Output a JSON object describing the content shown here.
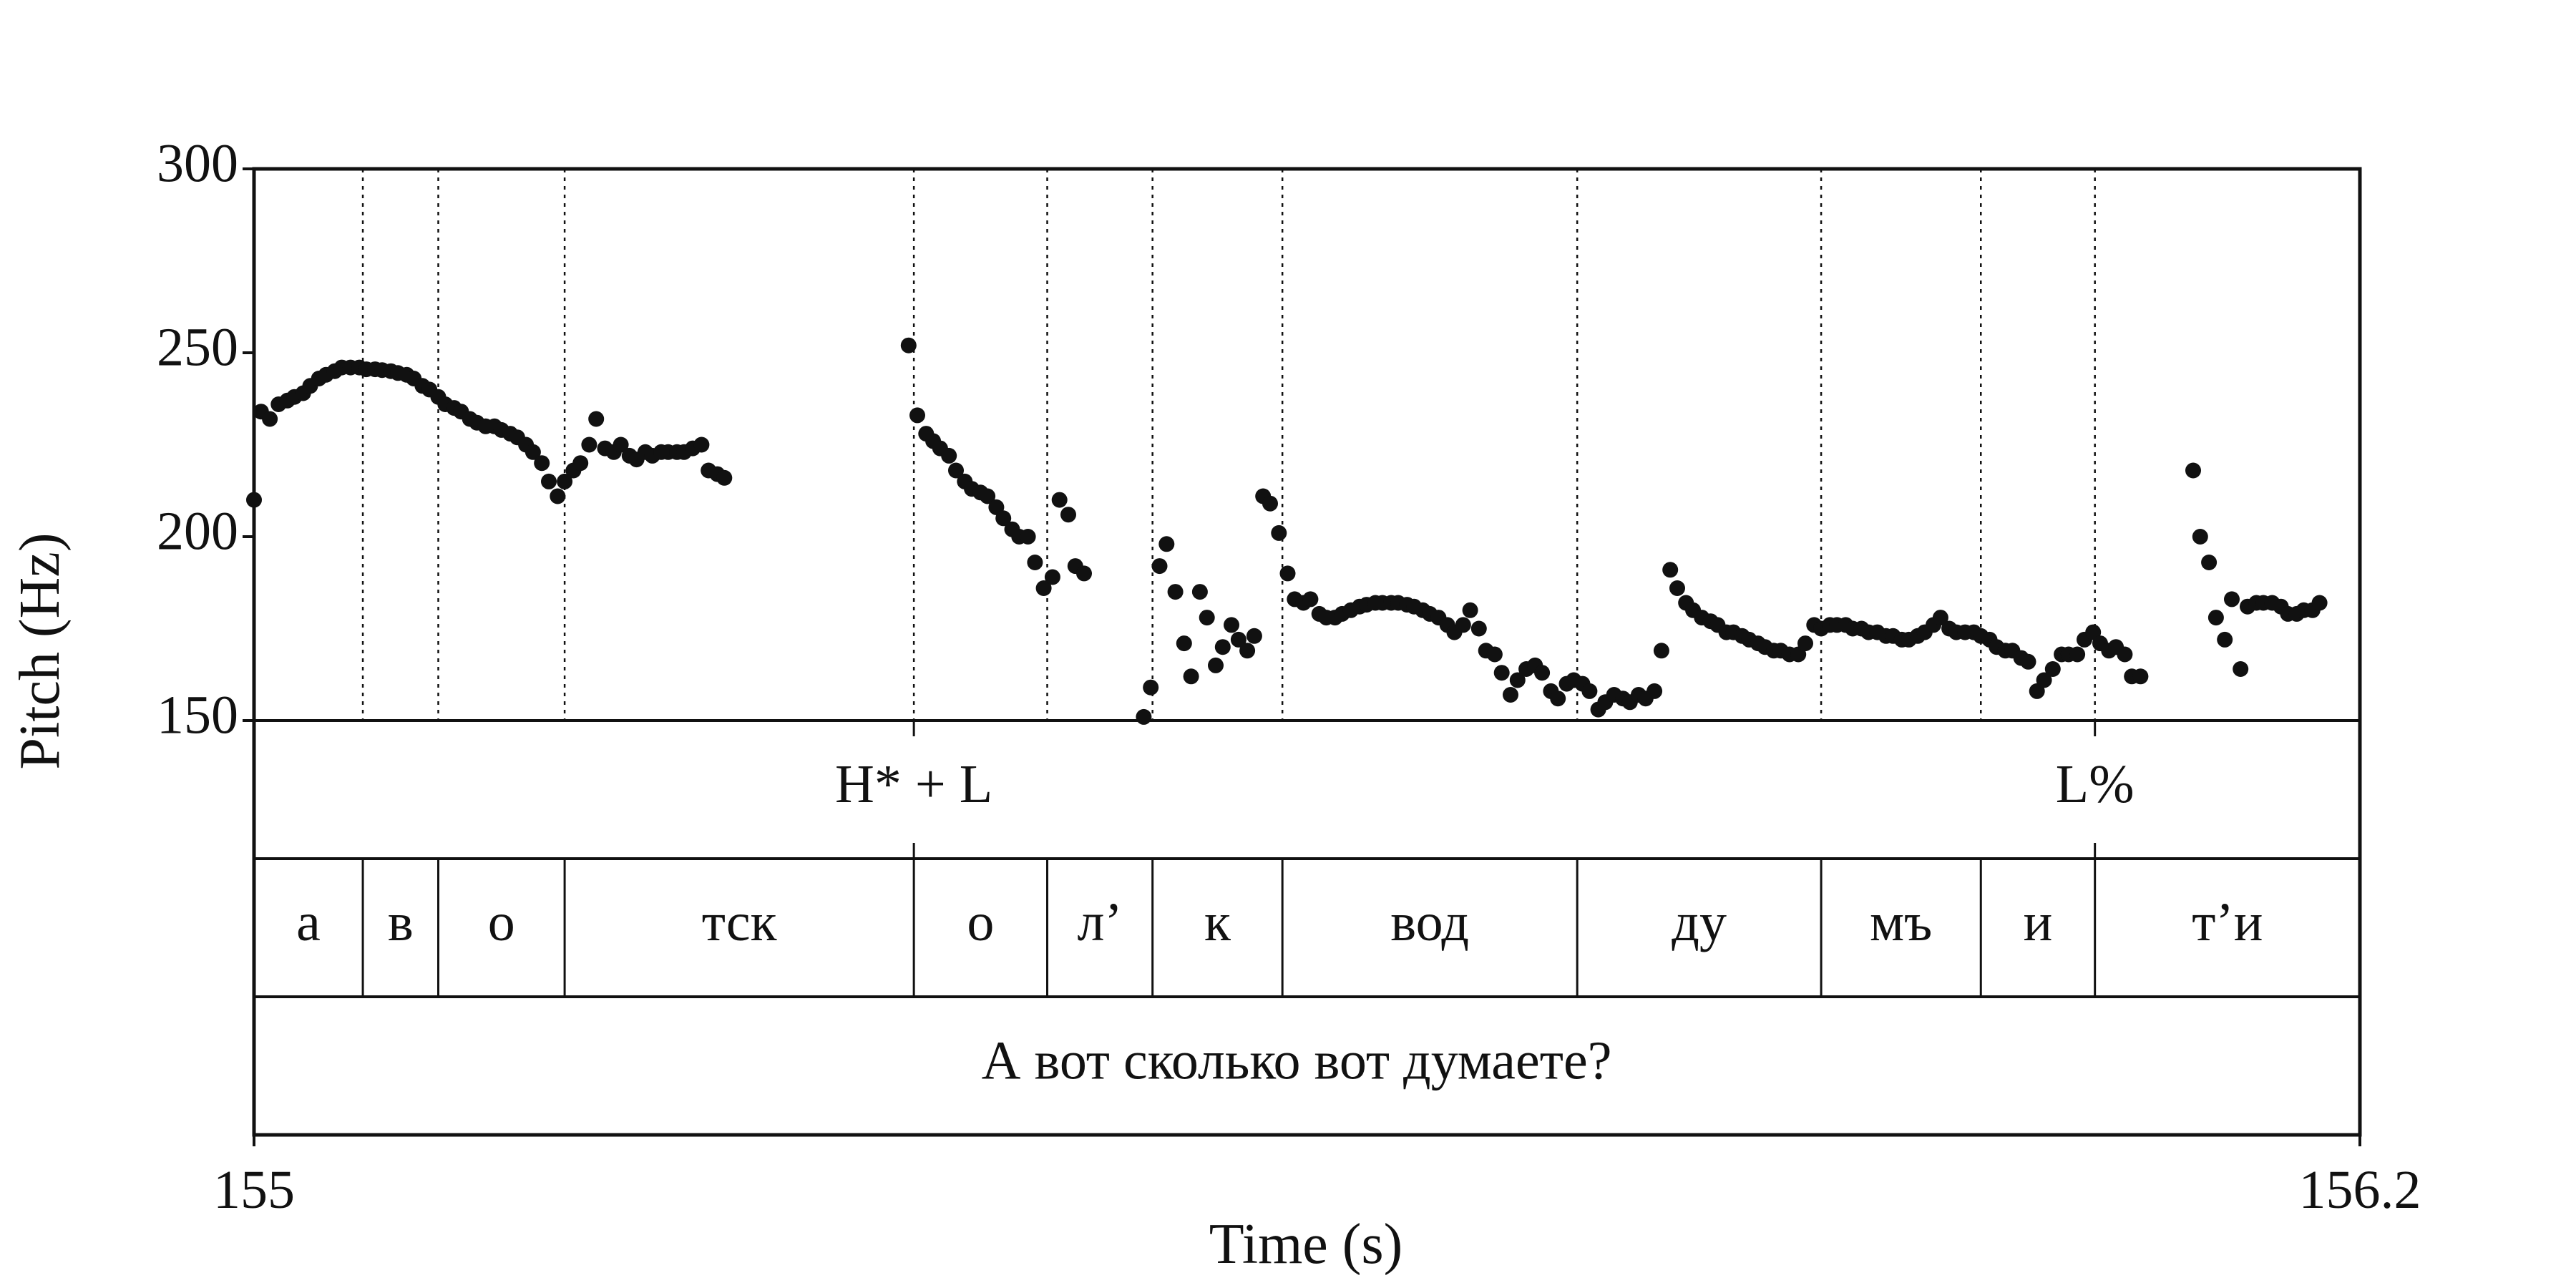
{
  "chart_data": {
    "type": "scatter",
    "xlabel": "Time (s)",
    "ylabel": "Pitch (Hz)",
    "xlim": [
      155,
      156.2
    ],
    "ylim": [
      150,
      300
    ],
    "x_ticks": [
      "155",
      "156.2"
    ],
    "y_ticks": [
      "150",
      "200",
      "250",
      "300"
    ],
    "grid": false,
    "tone_tier": [
      {
        "label": "H* + L",
        "t": 155.376
      },
      {
        "label": "L%",
        "t": 156.049
      }
    ],
    "segment_tier": [
      {
        "label": "а",
        "start": 155.0,
        "end": 155.062
      },
      {
        "label": "в",
        "start": 155.062,
        "end": 155.105
      },
      {
        "label": "о",
        "start": 155.105,
        "end": 155.177
      },
      {
        "label": "тск",
        "start": 155.177,
        "end": 155.376
      },
      {
        "label": "о",
        "start": 155.376,
        "end": 155.452
      },
      {
        "label": "л’",
        "start": 155.452,
        "end": 155.512
      },
      {
        "label": "к",
        "start": 155.512,
        "end": 155.586
      },
      {
        "label": "вод",
        "start": 155.586,
        "end": 155.754
      },
      {
        "label": "ду",
        "start": 155.754,
        "end": 155.893
      },
      {
        "label": "мъ",
        "start": 155.893,
        "end": 155.984
      },
      {
        "label": "и",
        "start": 155.984,
        "end": 156.049
      },
      {
        "label": "т’и",
        "start": 156.049,
        "end": 156.2
      }
    ],
    "sentence_tier": "А вот сколько вот думаете?",
    "series": [
      {
        "values": [
          [
            155.0,
            210
          ],
          [
            155.004,
            234
          ],
          [
            155.009,
            232
          ],
          [
            155.014,
            236
          ],
          [
            155.019,
            237
          ],
          [
            155.023,
            238
          ],
          [
            155.028,
            239
          ],
          [
            155.032,
            241
          ],
          [
            155.037,
            243
          ],
          [
            155.041,
            244
          ],
          [
            155.046,
            245
          ],
          [
            155.05,
            246
          ],
          [
            155.055,
            246
          ],
          [
            155.06,
            246
          ],
          [
            155.064,
            245.5
          ],
          [
            155.069,
            245.5
          ],
          [
            155.073,
            245.3
          ],
          [
            155.078,
            245
          ],
          [
            155.082,
            244.5
          ],
          [
            155.087,
            244
          ],
          [
            155.091,
            243
          ],
          [
            155.096,
            241
          ],
          [
            155.1,
            240
          ],
          [
            155.105,
            238
          ],
          [
            155.109,
            236
          ],
          [
            155.114,
            235
          ],
          [
            155.118,
            234
          ],
          [
            155.123,
            232
          ],
          [
            155.127,
            231
          ],
          [
            155.132,
            230
          ],
          [
            155.137,
            230
          ],
          [
            155.141,
            229
          ],
          [
            155.146,
            228
          ],
          [
            155.15,
            227
          ],
          [
            155.155,
            225
          ],
          [
            155.159,
            223
          ],
          [
            155.164,
            220
          ],
          [
            155.168,
            215
          ],
          [
            155.173,
            211
          ],
          [
            155.177,
            215
          ],
          [
            155.182,
            218
          ],
          [
            155.186,
            220
          ],
          [
            155.191,
            225
          ],
          [
            155.195,
            232
          ],
          [
            155.2,
            224
          ],
          [
            155.205,
            223
          ],
          [
            155.209,
            225
          ],
          [
            155.214,
            222
          ],
          [
            155.218,
            221
          ],
          [
            155.223,
            223
          ],
          [
            155.227,
            222
          ],
          [
            155.232,
            223
          ],
          [
            155.236,
            223
          ],
          [
            155.241,
            223
          ],
          [
            155.245,
            223
          ],
          [
            155.25,
            224
          ],
          [
            155.255,
            225
          ],
          [
            155.259,
            218
          ],
          [
            155.264,
            217
          ],
          [
            155.268,
            216
          ]
        ]
      },
      {
        "values": [
          [
            155.373,
            252
          ],
          [
            155.378,
            233
          ],
          [
            155.383,
            228
          ],
          [
            155.387,
            226
          ],
          [
            155.391,
            224
          ],
          [
            155.396,
            222
          ],
          [
            155.4,
            218
          ],
          [
            155.405,
            215
          ],
          [
            155.409,
            213
          ],
          [
            155.414,
            212
          ],
          [
            155.418,
            211
          ],
          [
            155.423,
            208
          ],
          [
            155.427,
            205
          ],
          [
            155.432,
            202
          ],
          [
            155.436,
            200
          ],
          [
            155.441,
            200
          ],
          [
            155.445,
            193
          ],
          [
            155.45,
            186
          ],
          [
            155.455,
            189
          ],
          [
            155.459,
            210
          ],
          [
            155.464,
            206
          ],
          [
            155.468,
            192
          ],
          [
            155.473,
            190
          ]
        ]
      },
      {
        "values": [
          [
            155.507,
            151
          ],
          [
            155.511,
            159
          ],
          [
            155.516,
            192
          ],
          [
            155.52,
            198
          ],
          [
            155.525,
            185
          ],
          [
            155.53,
            171
          ],
          [
            155.534,
            162
          ],
          [
            155.539,
            185
          ],
          [
            155.543,
            178
          ],
          [
            155.548,
            165
          ],
          [
            155.552,
            170
          ],
          [
            155.557,
            176
          ],
          [
            155.561,
            172
          ],
          [
            155.566,
            169
          ],
          [
            155.57,
            173
          ],
          [
            155.575,
            211
          ],
          [
            155.579,
            209
          ],
          [
            155.584,
            201
          ],
          [
            155.589,
            190
          ],
          [
            155.593,
            183
          ],
          [
            155.598,
            182
          ],
          [
            155.602,
            183
          ],
          [
            155.607,
            179
          ],
          [
            155.611,
            178
          ],
          [
            155.616,
            178
          ],
          [
            155.62,
            179
          ],
          [
            155.625,
            180
          ],
          [
            155.63,
            181
          ],
          [
            155.634,
            181.5
          ],
          [
            155.639,
            182
          ],
          [
            155.643,
            182
          ],
          [
            155.648,
            182
          ],
          [
            155.652,
            182
          ],
          [
            155.657,
            181.5
          ],
          [
            155.661,
            181
          ],
          [
            155.666,
            180
          ],
          [
            155.67,
            179
          ],
          [
            155.675,
            178
          ],
          [
            155.68,
            176
          ],
          [
            155.684,
            174
          ],
          [
            155.689,
            176
          ],
          [
            155.693,
            180
          ],
          [
            155.698,
            175
          ],
          [
            155.702,
            169
          ],
          [
            155.707,
            168
          ],
          [
            155.711,
            163
          ],
          [
            155.716,
            157
          ],
          [
            155.72,
            161
          ],
          [
            155.725,
            164
          ],
          [
            155.73,
            165
          ],
          [
            155.734,
            163
          ],
          [
            155.739,
            158
          ],
          [
            155.743,
            156
          ],
          [
            155.748,
            160
          ],
          [
            155.752,
            161
          ],
          [
            155.757,
            160
          ],
          [
            155.761,
            158
          ],
          [
            155.766,
            153
          ],
          [
            155.77,
            155
          ],
          [
            155.775,
            157
          ],
          [
            155.78,
            156
          ],
          [
            155.784,
            155
          ],
          [
            155.789,
            157
          ],
          [
            155.793,
            156
          ],
          [
            155.798,
            158
          ],
          [
            155.802,
            169
          ]
        ]
      },
      {
        "values": [
          [
            155.807,
            191
          ],
          [
            155.811,
            186
          ],
          [
            155.816,
            182
          ],
          [
            155.82,
            180
          ],
          [
            155.825,
            178
          ],
          [
            155.83,
            177
          ],
          [
            155.834,
            176
          ],
          [
            155.839,
            174
          ],
          [
            155.843,
            174
          ],
          [
            155.848,
            173
          ],
          [
            155.852,
            172
          ],
          [
            155.857,
            171
          ],
          [
            155.861,
            170
          ],
          [
            155.866,
            169
          ],
          [
            155.87,
            169
          ],
          [
            155.875,
            168
          ],
          [
            155.88,
            168
          ],
          [
            155.884,
            171
          ],
          [
            155.889,
            176
          ],
          [
            155.893,
            175
          ],
          [
            155.898,
            176
          ],
          [
            155.902,
            176
          ],
          [
            155.907,
            176
          ],
          [
            155.911,
            175
          ],
          [
            155.916,
            175
          ],
          [
            155.92,
            174
          ],
          [
            155.925,
            174
          ],
          [
            155.93,
            173
          ],
          [
            155.934,
            173
          ],
          [
            155.939,
            172
          ],
          [
            155.943,
            172
          ],
          [
            155.948,
            173
          ],
          [
            155.952,
            174
          ],
          [
            155.957,
            176
          ],
          [
            155.961,
            178
          ],
          [
            155.966,
            175
          ],
          [
            155.97,
            174
          ],
          [
            155.975,
            174
          ],
          [
            155.98,
            174
          ],
          [
            155.984,
            173
          ],
          [
            155.989,
            172
          ],
          [
            155.993,
            170
          ],
          [
            155.998,
            169
          ],
          [
            156.002,
            169
          ],
          [
            156.007,
            167
          ],
          [
            156.011,
            166
          ],
          [
            156.016,
            158
          ],
          [
            156.02,
            161
          ],
          [
            156.025,
            164
          ],
          [
            156.03,
            168
          ],
          [
            156.034,
            168
          ],
          [
            156.039,
            168
          ],
          [
            156.043,
            172
          ],
          [
            156.048,
            174
          ],
          [
            156.052,
            171
          ],
          [
            156.057,
            169
          ],
          [
            156.061,
            170
          ],
          [
            156.066,
            168
          ],
          [
            156.07,
            162
          ],
          [
            156.075,
            162
          ]
        ]
      },
      {
        "values": [
          [
            156.105,
            218
          ],
          [
            156.109,
            200
          ],
          [
            156.114,
            193
          ],
          [
            156.118,
            178
          ],
          [
            156.123,
            172
          ],
          [
            156.127,
            183
          ],
          [
            156.132,
            164
          ],
          [
            156.136,
            181
          ],
          [
            156.141,
            182
          ],
          [
            156.145,
            182
          ],
          [
            156.15,
            182
          ],
          [
            156.155,
            181
          ],
          [
            156.159,
            179
          ],
          [
            156.164,
            179
          ],
          [
            156.168,
            180
          ],
          [
            156.173,
            180
          ],
          [
            156.177,
            182
          ]
        ]
      }
    ]
  }
}
